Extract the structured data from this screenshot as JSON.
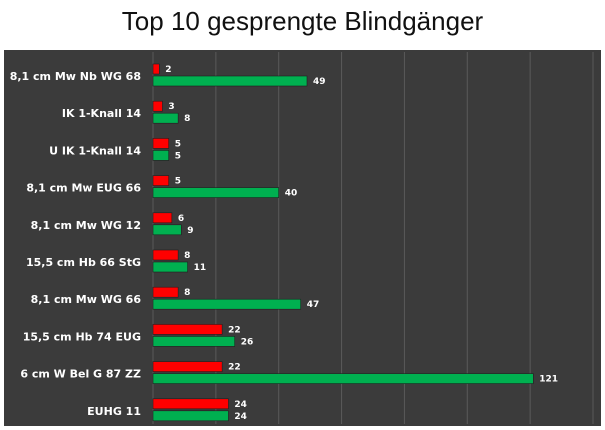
{
  "title": "Top 10 gesprengte Blindgänger",
  "colors": {
    "background": "#3b3b3b",
    "series_a": "#ff0000",
    "series_b": "#00b050",
    "grid": "#5a5a5a"
  },
  "chart_data": {
    "type": "bar",
    "orientation": "horizontal",
    "title": "Top 10 gesprengte Blindgänger",
    "categories": [
      "8,1 cm Mw Nb WG 68",
      "IK 1-Knall 14",
      "U IK 1-Knall 14",
      "8,1 cm Mw EUG 66",
      "8,1 cm Mw WG 12",
      "15,5 cm Hb 66 StG",
      "8,1 cm Mw WG 66",
      "15,5 cm Hb 74 EUG",
      "6 cm W Bel G 87 ZZ",
      "EUHG 11"
    ],
    "series": [
      {
        "color": "#ff0000",
        "values": [
          2,
          3,
          5,
          5,
          6,
          8,
          8,
          22,
          22,
          24
        ]
      },
      {
        "color": "#00b050",
        "values": [
          49,
          8,
          5,
          40,
          9,
          11,
          47,
          26,
          121,
          24
        ]
      }
    ],
    "xlim": [
      0,
      140
    ],
    "grid": true,
    "legend": "none",
    "data_labels": true
  }
}
